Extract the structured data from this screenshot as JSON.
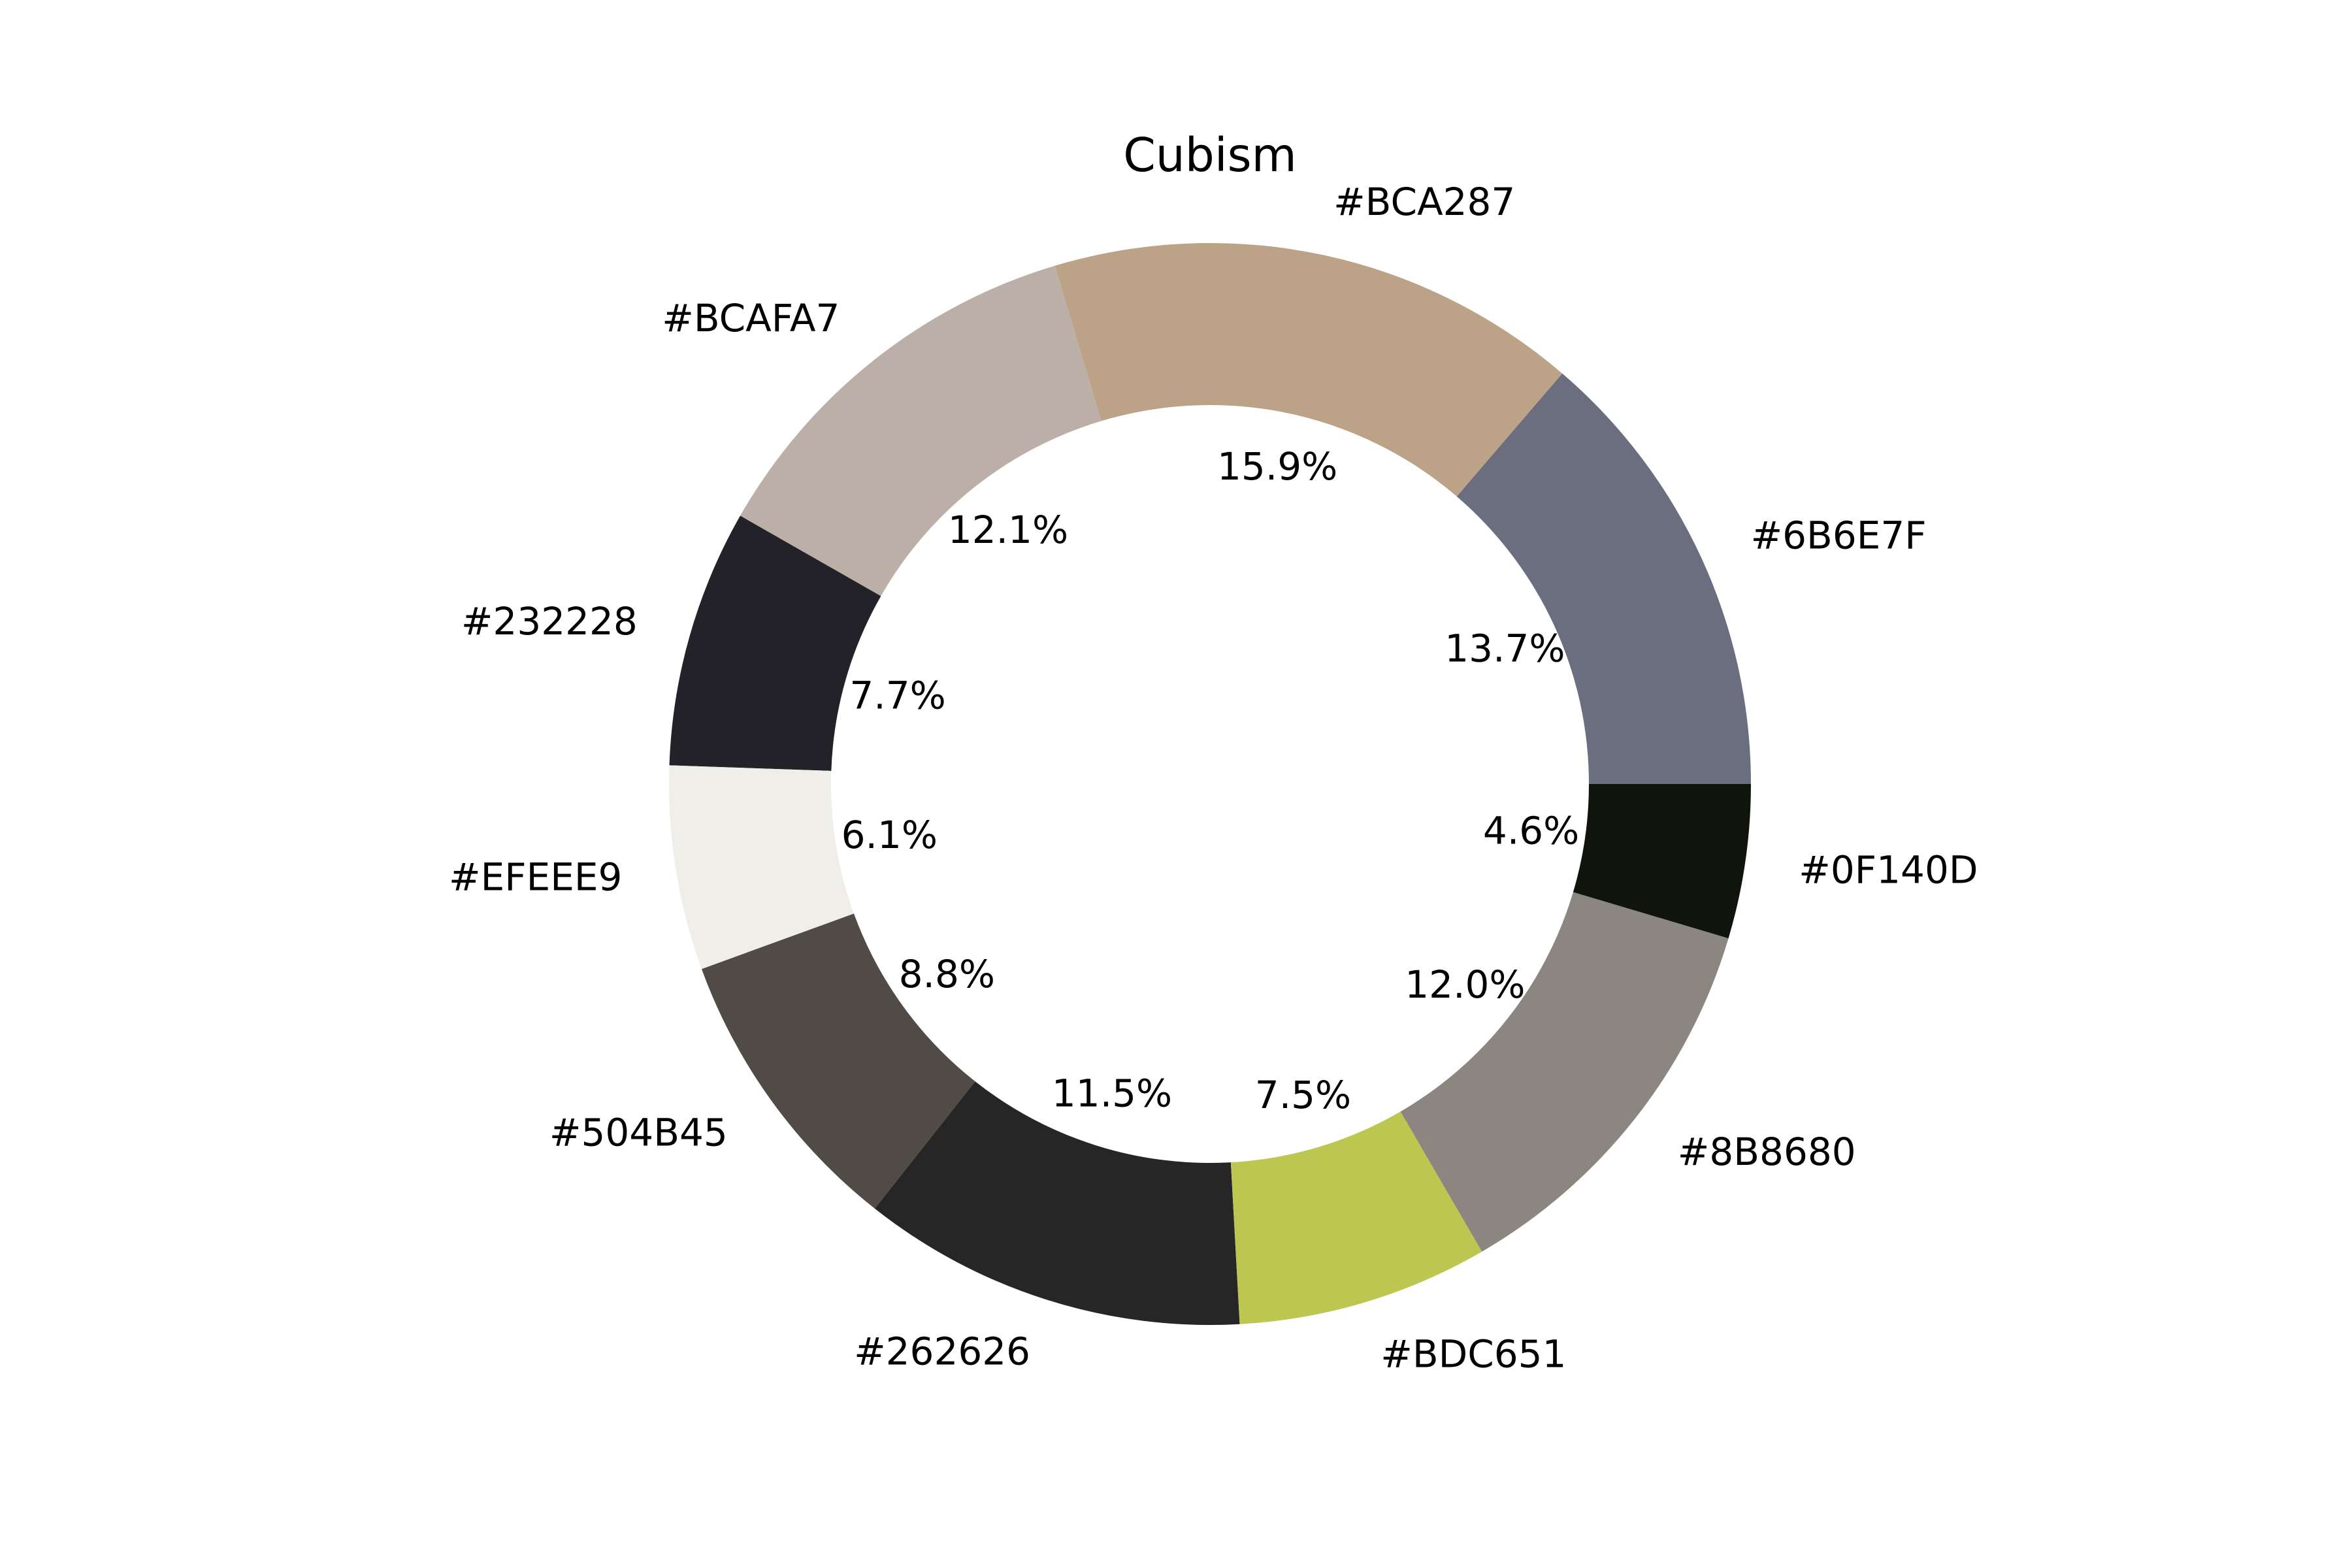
{
  "chart_data": {
    "type": "pie",
    "variant": "donut",
    "title": "Cubism",
    "start_angle_deg": 0,
    "direction": "counterclockwise",
    "slices": [
      {
        "label": "#6B6E7F",
        "value": 13.7,
        "pct_label": "13.7%",
        "color": "#6B6E7F"
      },
      {
        "label": "#BCA287",
        "value": 15.9,
        "pct_label": "15.9%",
        "color": "#BCA287"
      },
      {
        "label": "#BCAFA7",
        "value": 12.1,
        "pct_label": "12.1%",
        "color": "#BCAFA7"
      },
      {
        "label": "#232228",
        "value": 7.7,
        "pct_label": "7.7%",
        "color": "#232228"
      },
      {
        "label": "#EFEEE9",
        "value": 6.1,
        "pct_label": "6.1%",
        "color": "#EFEEE9"
      },
      {
        "label": "#504B45",
        "value": 8.8,
        "pct_label": "8.8%",
        "color": "#504B45"
      },
      {
        "label": "#262626",
        "value": 11.5,
        "pct_label": "11.5%",
        "color": "#262626"
      },
      {
        "label": "#BDC651",
        "value": 7.5,
        "pct_label": "7.5%",
        "color": "#BDC651"
      },
      {
        "label": "#8B8680",
        "value": 12.0,
        "pct_label": "12.0%",
        "color": "#8B8680"
      },
      {
        "label": "#0F140D",
        "value": 4.6,
        "pct_label": "4.6%",
        "color": "#0F140D"
      }
    ]
  }
}
